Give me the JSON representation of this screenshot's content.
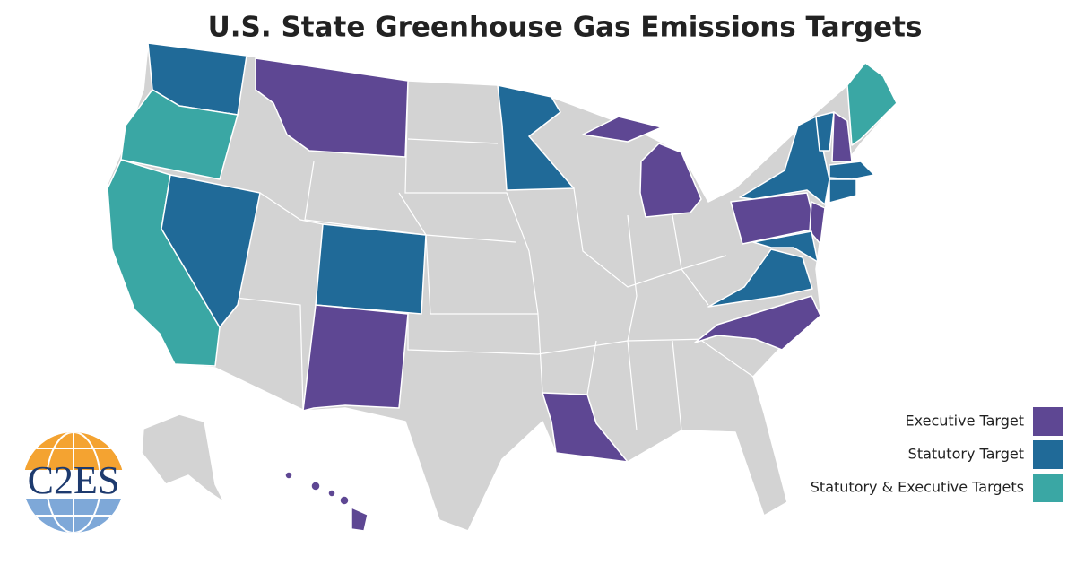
{
  "title": "U.S. State Greenhouse Gas Emissions Targets",
  "legend": {
    "items": [
      {
        "name": "Executive Target",
        "color": "#5e4793"
      },
      {
        "name": "Statutory Target",
        "color": "#206a98"
      },
      {
        "name": "Statutory & Executive Targets",
        "color": "#3aa7a4"
      }
    ]
  },
  "base_color": "#d3d3d3",
  "logo": {
    "text": "C2ES"
  }
}
